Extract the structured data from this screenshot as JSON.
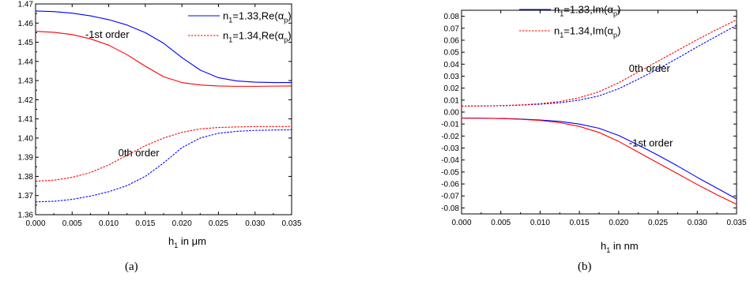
{
  "chart_data": [
    {
      "type": "line",
      "panel_label": "(a)",
      "xlabel": {
        "main": "h",
        "sub": "1",
        "rest": " in μm"
      },
      "xlim": [
        0.0,
        0.035
      ],
      "ylim": [
        1.36,
        1.47
      ],
      "x_ticks": [
        "0.000",
        "0.005",
        "0.010",
        "0.015",
        "0.020",
        "0.025",
        "0.030",
        "0.035"
      ],
      "y_ticks": [
        "1.36",
        "1.37",
        "1.38",
        "1.39",
        "1.40",
        "1.41",
        "1.42",
        "1.43",
        "1.44",
        "1.45",
        "1.46",
        "1.47"
      ],
      "legend": [
        {
          "main": "n",
          "sub1": "1",
          "mid": "=1.33,Re(",
          "greek": "α",
          "sub2": "p",
          "close": ")",
          "color": "#0000ff",
          "dash": "solid"
        },
        {
          "main": "n",
          "sub1": "1",
          "mid": "=1.34,Re(",
          "greek": "α",
          "sub2": "p",
          "close": ")",
          "color": "#ff0000",
          "dash": "dashed"
        }
      ],
      "annotations": [
        {
          "text": "-1st order",
          "x": 0.0068,
          "y": 1.4523
        },
        {
          "text": "0th order",
          "x": 0.0113,
          "y": 1.3905
        }
      ],
      "series": [
        {
          "name": "n1=1.33, -1st order",
          "color": "#0000ff",
          "dash": "solid",
          "x": [
            0.0,
            0.0025,
            0.005,
            0.0075,
            0.01,
            0.0125,
            0.015,
            0.0175,
            0.02,
            0.0225,
            0.025,
            0.0275,
            0.03,
            0.0325,
            0.035
          ],
          "y": [
            1.4663,
            1.466,
            1.4652,
            1.4638,
            1.4618,
            1.459,
            1.455,
            1.4495,
            1.442,
            1.4355,
            1.4315,
            1.4298,
            1.4292,
            1.429,
            1.429
          ]
        },
        {
          "name": "n1=1.34, -1st order",
          "color": "#ff0000",
          "dash": "solid",
          "x": [
            0.0,
            0.0025,
            0.005,
            0.0075,
            0.01,
            0.0125,
            0.015,
            0.0175,
            0.02,
            0.0225,
            0.025,
            0.0275,
            0.03,
            0.0325,
            0.035
          ],
          "y": [
            1.4557,
            1.4552,
            1.454,
            1.4518,
            1.4485,
            1.4435,
            1.4375,
            1.432,
            1.429,
            1.4277,
            1.4272,
            1.427,
            1.427,
            1.4271,
            1.4272
          ]
        },
        {
          "name": "n1=1.33, 0th order",
          "color": "#0000ff",
          "dash": "dashed",
          "x": [
            0.0,
            0.0025,
            0.005,
            0.0075,
            0.01,
            0.0125,
            0.015,
            0.0175,
            0.02,
            0.0225,
            0.025,
            0.0275,
            0.03,
            0.0325,
            0.035
          ],
          "y": [
            1.3667,
            1.367,
            1.368,
            1.3697,
            1.372,
            1.3752,
            1.38,
            1.387,
            1.395,
            1.4,
            1.4025,
            1.4035,
            1.404,
            1.4042,
            1.4043
          ]
        },
        {
          "name": "n1=1.34, 0th order",
          "color": "#ff0000",
          "dash": "dashed",
          "x": [
            0.0,
            0.0025,
            0.005,
            0.0075,
            0.01,
            0.0125,
            0.015,
            0.0175,
            0.02,
            0.0225,
            0.025,
            0.0275,
            0.03,
            0.0325,
            0.035
          ],
          "y": [
            1.3775,
            1.378,
            1.3795,
            1.382,
            1.386,
            1.391,
            1.396,
            1.4,
            1.403,
            1.4048,
            1.4055,
            1.4058,
            1.406,
            1.406,
            1.406
          ]
        }
      ]
    },
    {
      "type": "line",
      "panel_label": "(b)",
      "xlabel": {
        "main": "h",
        "sub": "1",
        "rest": " in nm"
      },
      "xlim": [
        0.0,
        0.035
      ],
      "ylim": [
        -0.085,
        0.085
      ],
      "x_ticks": [
        "0.000",
        "0.005",
        "0.010",
        "0.015",
        "0.020",
        "0.025",
        "0.030",
        "0.035"
      ],
      "y_ticks": [
        "0.08",
        "0.07",
        "0.06",
        "0.05",
        "0.04",
        "0.03",
        "0.02",
        "0.01",
        "0.00",
        "-0.01",
        "-0.02",
        "-0.03",
        "-0.04",
        "-0.05",
        "-0.06",
        "-0.07",
        "-0.08"
      ],
      "y_tick_values": [
        0.08,
        0.07,
        0.06,
        0.05,
        0.04,
        0.03,
        0.02,
        0.01,
        0.0,
        -0.01,
        -0.02,
        -0.03,
        -0.04,
        -0.05,
        -0.06,
        -0.07,
        -0.08
      ],
      "legend": [
        {
          "main": "n",
          "sub1": "1",
          "mid": "=1.33,Im(",
          "greek": "α",
          "sub2": "p",
          "close": ")",
          "color": "#0000ff",
          "dash": "solid"
        },
        {
          "main": "n",
          "sub1": "1",
          "mid": "=1.34,Im(",
          "greek": "α",
          "sub2": "p",
          "close": ")",
          "color": "#ff0000",
          "dash": "dashed"
        }
      ],
      "annotations": [
        {
          "text": "0th order",
          "x": 0.0213,
          "y": 0.0335
        },
        {
          "text": "-1st order",
          "x": 0.0213,
          "y": -0.0285
        }
      ],
      "series": [
        {
          "name": "n1=1.33, -1st order",
          "color": "#0000ff",
          "dash": "solid",
          "x": [
            0.0,
            0.0025,
            0.005,
            0.0075,
            0.01,
            0.0125,
            0.015,
            0.0175,
            0.02,
            0.0225,
            0.025,
            0.0275,
            0.03,
            0.0325,
            0.035
          ],
          "y": [
            -0.005,
            -0.0051,
            -0.0053,
            -0.0058,
            -0.0066,
            -0.0078,
            -0.01,
            -0.0135,
            -0.0195,
            -0.0275,
            -0.036,
            -0.045,
            -0.0545,
            -0.0635,
            -0.0725
          ]
        },
        {
          "name": "n1=1.34, -1st order",
          "color": "#ff0000",
          "dash": "solid",
          "x": [
            0.0,
            0.0025,
            0.005,
            0.0075,
            0.01,
            0.0125,
            0.015,
            0.0175,
            0.02,
            0.0225,
            0.025,
            0.0275,
            0.03,
            0.0325,
            0.035
          ],
          "y": [
            -0.005,
            -0.0051,
            -0.0054,
            -0.006,
            -0.007,
            -0.0088,
            -0.012,
            -0.017,
            -0.0245,
            -0.0335,
            -0.0425,
            -0.0515,
            -0.0605,
            -0.069,
            -0.077
          ]
        },
        {
          "name": "n1=1.33, 0th order",
          "color": "#0000ff",
          "dash": "dashed",
          "x": [
            0.0,
            0.0025,
            0.005,
            0.0075,
            0.01,
            0.0125,
            0.015,
            0.0175,
            0.02,
            0.0225,
            0.025,
            0.0275,
            0.03,
            0.0325,
            0.035
          ],
          "y": [
            0.005,
            0.0051,
            0.0053,
            0.0058,
            0.0066,
            0.0078,
            0.01,
            0.0135,
            0.0195,
            0.0275,
            0.036,
            0.045,
            0.0545,
            0.0635,
            0.0725
          ]
        },
        {
          "name": "n1=1.34, 0th order",
          "color": "#ff0000",
          "dash": "dashed",
          "x": [
            0.0,
            0.0025,
            0.005,
            0.0075,
            0.01,
            0.0125,
            0.015,
            0.0175,
            0.02,
            0.0225,
            0.025,
            0.0275,
            0.03,
            0.0325,
            0.035
          ],
          "y": [
            0.005,
            0.0051,
            0.0054,
            0.006,
            0.007,
            0.0088,
            0.012,
            0.017,
            0.0245,
            0.0335,
            0.0425,
            0.0515,
            0.0605,
            0.069,
            0.077
          ]
        }
      ]
    }
  ]
}
